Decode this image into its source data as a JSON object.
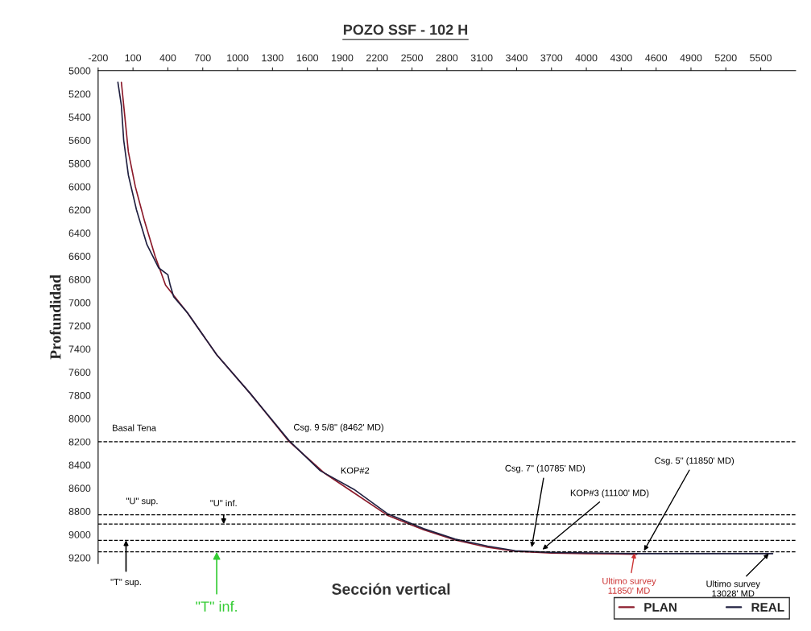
{
  "chart_data": {
    "type": "line",
    "title": "POZO SSF - 102 H",
    "xlabel": "Sección vertical",
    "ylabel": "Profundidad",
    "xlim": [
      -200,
      5800
    ],
    "xticks": [
      -200,
      100,
      400,
      700,
      1000,
      1300,
      1600,
      1900,
      2200,
      2500,
      2800,
      3100,
      3400,
      3700,
      4000,
      4300,
      4600,
      4900,
      5200,
      5500
    ],
    "ylim": [
      9250,
      5000
    ],
    "yticks": [
      5000,
      5200,
      5400,
      5600,
      5800,
      6000,
      6200,
      6400,
      6600,
      6800,
      7000,
      7200,
      7400,
      7600,
      7800,
      8000,
      8200,
      8400,
      8600,
      8800,
      9000,
      9200
    ],
    "grid": false,
    "legend": "bottom right",
    "line_style": "solid",
    "marker": "none",
    "series": [
      {
        "name": "PLAN",
        "color": "#8b1a2a",
        "x": [
          0,
          30,
          60,
          120,
          200,
          290,
          380,
          570,
          820,
          1107,
          1442,
          1751,
          2000,
          2288,
          2600,
          2872,
          3150,
          3388,
          3700,
          4000,
          4435
        ],
        "values": [
          5100,
          5400,
          5700,
          6000,
          6300,
          6600,
          6850,
          7090,
          7450,
          7782,
          8197,
          8474,
          8640,
          8834,
          8960,
          9048,
          9110,
          9145,
          9160,
          9165,
          9170
        ]
      },
      {
        "name": "REAL",
        "color": "#202040",
        "x": [
          -30,
          0,
          20,
          60,
          130,
          220,
          320,
          400,
          420,
          450,
          570,
          820,
          1107,
          1442,
          1711,
          2000,
          2288,
          2600,
          2872,
          3150,
          3388,
          3700,
          4435,
          4800,
          5200,
          5603
        ],
        "values": [
          5100,
          5300,
          5600,
          5900,
          6200,
          6500,
          6700,
          6760,
          6850,
          6950,
          7090,
          7450,
          7782,
          8190,
          8450,
          8610,
          8820,
          8950,
          9040,
          9100,
          9140,
          9155,
          9165,
          9165,
          9165,
          9165
        ]
      }
    ],
    "ref_lines": [
      {
        "axis": "y",
        "value": 8200,
        "label": "Basal Tena",
        "color": "#000000",
        "line_style": "dashed"
      },
      {
        "axis": "y",
        "value": 8830,
        "label": "\"U\" sup.",
        "color": "#000000",
        "line_style": "dashed"
      },
      {
        "axis": "y",
        "value": 8910,
        "label": "\"U\" inf.",
        "color": "#000000",
        "line_style": "dashed"
      },
      {
        "axis": "y",
        "value": 9050,
        "label": "\"T\" sup.",
        "color": "#000000",
        "line_style": "dashed"
      },
      {
        "axis": "y",
        "value": 9150,
        "label": "\"T\" inf.",
        "color": "#000000",
        "line_style": "dashed"
      }
    ],
    "annotations": [
      {
        "text": "Csg. 9 5/8\" (8462' MD)",
        "x": 1442,
        "y": 8197
      },
      {
        "text": "KOP#2",
        "x": 1751,
        "y": 8474
      },
      {
        "text": "Csg. 7\" (10785' MD)",
        "x": 3530,
        "y": 9110
      },
      {
        "text": "KOP#3 (11100' MD)",
        "x": 3623,
        "y": 9130
      },
      {
        "text": "Csg. 5\" (11850' MD)",
        "x": 4496,
        "y": 9140
      },
      {
        "text": "Ultimo survey\n11850' MD",
        "x": 4415,
        "y": 9160
      },
      {
        "text": "Ultimo survey\n13028' MD",
        "x": 5570,
        "y": 9165
      }
    ]
  }
}
